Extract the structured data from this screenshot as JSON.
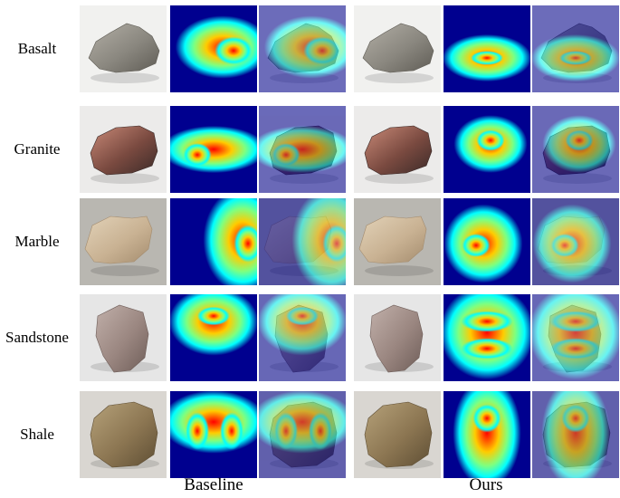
{
  "figure": {
    "rows": [
      {
        "label": "Basalt",
        "rock": {
          "fill": "#8a877f",
          "dark": "#5f5c55",
          "light": "#b3afa6",
          "bg": "#f1f1ef"
        }
      },
      {
        "label": "Granite",
        "rock": {
          "fill": "#7a4a40",
          "dark": "#3a2a28",
          "light": "#c98a78",
          "bg": "#ecebea"
        }
      },
      {
        "label": "Marble",
        "rock": {
          "fill": "#c9b293",
          "dark": "#a48c6e",
          "light": "#e2d2b8",
          "bg": "#b9b7b1"
        }
      },
      {
        "label": "Sandstone",
        "rock": {
          "fill": "#9a8680",
          "dark": "#6e5d58",
          "light": "#c1b0aa",
          "bg": "#e6e6e6"
        }
      },
      {
        "label": "Shale",
        "rock": {
          "fill": "#8c7652",
          "dark": "#5e4e34",
          "light": "#b6a27a",
          "bg": "#d9d6d1"
        }
      }
    ],
    "groups": [
      {
        "label": "Baseline"
      },
      {
        "label": "Ours"
      }
    ],
    "colors": {
      "jet_low": "#00008f",
      "jet_mid": "#00ffff",
      "jet_high": "#ff0000"
    }
  }
}
